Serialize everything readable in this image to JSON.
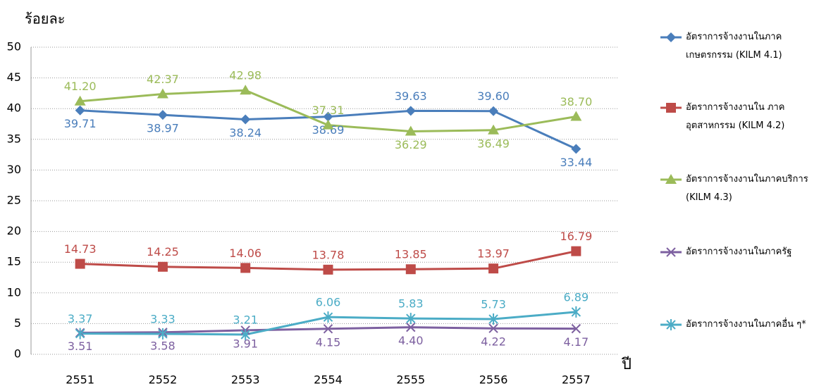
{
  "chart_data": {
    "type": "line",
    "y_label": "ร้อยละ",
    "x_label": "ปี",
    "categories": [
      "2551",
      "2552",
      "2553",
      "2554",
      "2555",
      "2556",
      "2557"
    ],
    "ylim": [
      0,
      50
    ],
    "yticks": [
      0,
      5,
      10,
      15,
      20,
      25,
      30,
      35,
      40,
      45,
      50
    ],
    "grid": true,
    "series": [
      {
        "name": "อัตราการจ้างงานในภาค เกษตรกรรม (KILM 4.1)",
        "color": "#4a7ebb",
        "values": [
          39.71,
          38.97,
          38.24,
          38.69,
          39.63,
          39.6,
          33.44
        ],
        "value_labels": [
          "39.71",
          "38.97",
          "38.24",
          "38.69",
          "39.63",
          "39.60",
          "33.44"
        ]
      },
      {
        "name": "อัตราการจ้างงานใน ภาคอุตสาหกรรม (KILM 4.2)",
        "color": "#be4b48",
        "values": [
          14.73,
          14.25,
          14.06,
          13.78,
          13.85,
          13.97,
          16.79
        ],
        "value_labels": [
          "14.73",
          "14.25",
          "14.06",
          "13.78",
          "13.85",
          "13.97",
          "16.79"
        ]
      },
      {
        "name": "อัตราการจ้างงานในภาคบริการ (KILM 4.3)",
        "color": "#9bbb59",
        "values": [
          41.2,
          42.37,
          42.98,
          37.31,
          36.29,
          36.49,
          38.7
        ],
        "value_labels": [
          "41.20",
          "42.37",
          "42.98",
          "37.31",
          "36.29",
          "36.49",
          "38.70"
        ]
      },
      {
        "name": "อัตราการจ้างงานในภาครัฐ",
        "color": "#7d60a0",
        "values": [
          3.51,
          3.58,
          3.91,
          4.15,
          4.4,
          4.22,
          4.17
        ],
        "value_labels": [
          "3.51",
          "3.58",
          "3.91",
          "4.15",
          "4.40",
          "4.22",
          "4.17"
        ]
      },
      {
        "name": "อัตราการจ้างงานในภาคอื่น ๆ*",
        "color": "#4bacc6",
        "values": [
          3.37,
          3.33,
          3.21,
          6.06,
          5.83,
          5.73,
          6.89
        ],
        "value_labels": [
          "3.37",
          "3.33",
          "3.21",
          "6.06",
          "5.83",
          "5.73",
          "6.89"
        ]
      }
    ]
  }
}
